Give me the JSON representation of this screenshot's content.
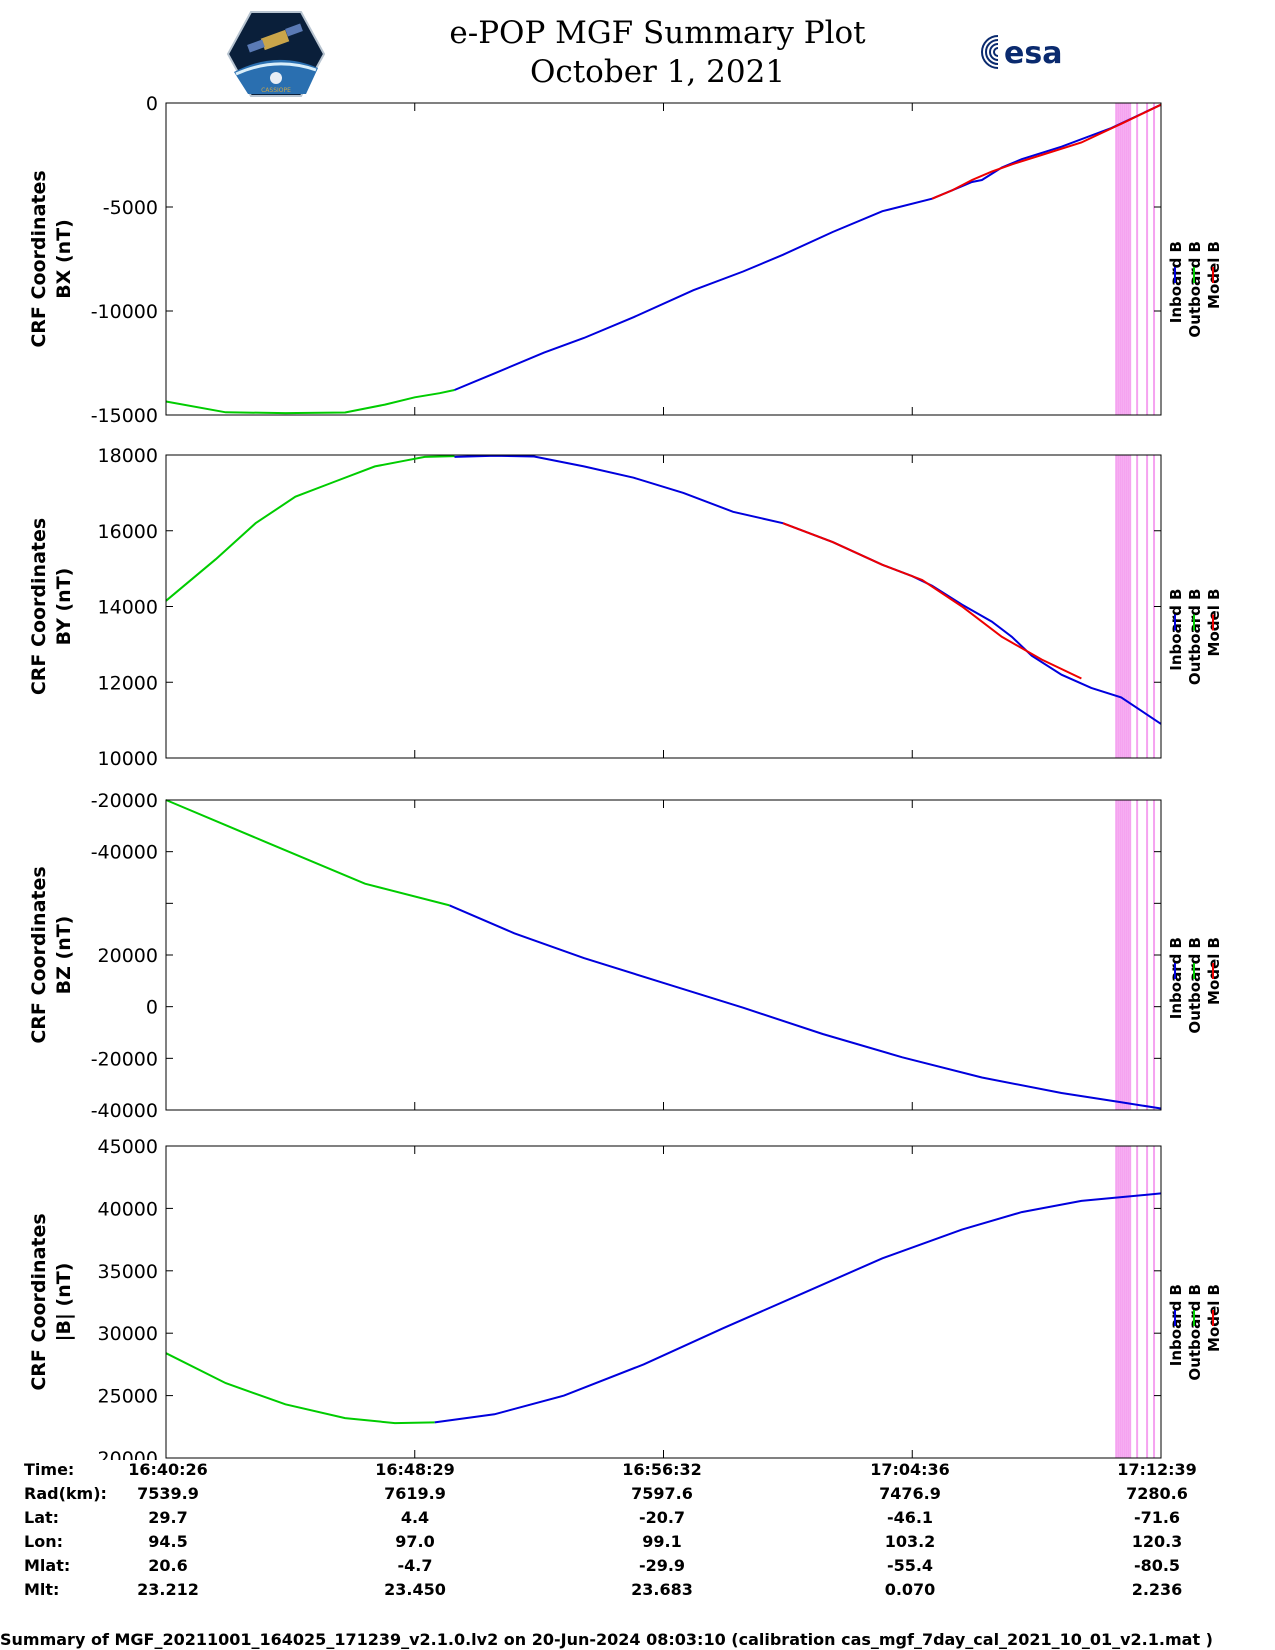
{
  "title": {
    "line1": "e-POP MGF Summary Plot",
    "line2": "October 1, 2021"
  },
  "logos": {
    "left": "cassiope-logo",
    "left_text": "CASSIOPE",
    "right": "esa-logo",
    "right_text": "esa"
  },
  "colors": {
    "inboard": "#0000dd",
    "outboard": "#00cc00",
    "model": "#ee0000",
    "event_bands": "#f5a3f0"
  },
  "legend": [
    "Inboard B",
    "Outboard B",
    "Model B"
  ],
  "chart_data": [
    {
      "type": "line",
      "ylabel_line1": "CRF Coordinates",
      "ylabel_line2": "BX (nT)",
      "yticks": [
        "0",
        "-5000",
        "-10000",
        "-15000"
      ],
      "ylim": [
        -15000,
        0
      ],
      "xlim": [
        0,
        1000
      ],
      "series": [
        {
          "name": "Outboard B",
          "x": [
            0,
            60,
            120,
            180,
            220,
            250,
            275,
            290
          ],
          "y": [
            -14350,
            -14870,
            -14910,
            -14880,
            -14500,
            -14150,
            -13950,
            -13800
          ]
        },
        {
          "name": "Inboard B",
          "x": [
            290,
            330,
            380,
            420,
            470,
            530,
            580,
            620,
            670,
            720,
            770,
            800,
            810,
            820,
            840,
            860,
            900,
            950,
            1000
          ],
          "y": [
            -13800,
            -13000,
            -12000,
            -11300,
            -10300,
            -9000,
            -8100,
            -7300,
            -6200,
            -5200,
            -4600,
            -4000,
            -3800,
            -3700,
            -3100,
            -2700,
            -2100,
            -1200,
            -80
          ]
        },
        {
          "name": "Model B",
          "x": [
            770,
            790,
            810,
            830,
            850,
            880,
            920,
            960,
            1000
          ],
          "y": [
            -4600,
            -4200,
            -3700,
            -3300,
            -2950,
            -2500,
            -1900,
            -1000,
            -80
          ]
        }
      ]
    },
    {
      "type": "line",
      "ylabel_line1": "CRF Coordinates",
      "ylabel_line2": "BY (nT)",
      "yticks": [
        "18000",
        "16000",
        "14000",
        "12000",
        "10000"
      ],
      "ylim": [
        10000,
        18000
      ],
      "xlim": [
        0,
        1000
      ],
      "series": [
        {
          "name": "Outboard B",
          "x": [
            0,
            50,
            90,
            130,
            170,
            210,
            240,
            260,
            290
          ],
          "y": [
            14150,
            15250,
            16200,
            16900,
            17300,
            17700,
            17850,
            17950,
            17970
          ]
        },
        {
          "name": "Inboard B",
          "x": [
            290,
            330,
            370,
            420,
            470,
            520,
            570,
            620,
            670,
            720,
            750,
            770,
            800,
            830,
            850,
            870,
            900,
            930,
            960,
            1000
          ],
          "y": [
            17950,
            17980,
            17960,
            17700,
            17400,
            17000,
            16500,
            16200,
            15700,
            15100,
            14800,
            14550,
            14050,
            13600,
            13200,
            12700,
            12200,
            11850,
            11600,
            10900
          ]
        },
        {
          "name": "Model B",
          "x": [
            620,
            670,
            720,
            760,
            800,
            840,
            880,
            920
          ],
          "y": [
            16200,
            15700,
            15100,
            14700,
            14000,
            13200,
            12600,
            12100
          ]
        }
      ]
    },
    {
      "type": "line",
      "ylabel_line1": "CRF Coordinates",
      "ylabel_line2": "BZ (nT)",
      "yticks": [
        "-20000",
        "-40000",
        "",
        "20000",
        "0",
        "-20000",
        "-40000"
      ],
      "ylim": [
        -40000,
        60000
      ],
      "xlim": [
        0,
        1000
      ],
      "series": [
        {
          "name": "Outboard B",
          "x": [
            0,
            100,
            200,
            285
          ],
          "y": [
            60000,
            46500,
            33000,
            26000
          ]
        },
        {
          "name": "Inboard B",
          "x": [
            285,
            350,
            420,
            500,
            580,
            660,
            740,
            820,
            900,
            960,
            1000
          ],
          "y": [
            26000,
            17000,
            9000,
            1000,
            -7000,
            -15500,
            -23000,
            -29500,
            -34500,
            -37500,
            -39500
          ]
        },
        {
          "name": "Model B",
          "x": [],
          "y": []
        }
      ]
    },
    {
      "type": "line",
      "ylabel_line1": "CRF Coordinates",
      "ylabel_line2": "|B| (nT)",
      "yticks": [
        "45000",
        "40000",
        "35000",
        "30000",
        "25000",
        "20000"
      ],
      "ylim": [
        20000,
        45000
      ],
      "xlim": [
        0,
        1000
      ],
      "series": [
        {
          "name": "Outboard B",
          "x": [
            0,
            60,
            120,
            180,
            230,
            270
          ],
          "y": [
            28400,
            26000,
            24300,
            23200,
            22800,
            22850
          ]
        },
        {
          "name": "Inboard B",
          "x": [
            270,
            330,
            400,
            480,
            560,
            640,
            720,
            800,
            860,
            920,
            1000
          ],
          "y": [
            22850,
            23500,
            25000,
            27500,
            30400,
            33200,
            36000,
            38300,
            39700,
            40600,
            41200
          ]
        },
        {
          "name": "Model B",
          "x": [],
          "y": []
        }
      ]
    }
  ],
  "event_lines_x": [
    955,
    957,
    959,
    961,
    963,
    965,
    967,
    969,
    976,
    986,
    993
  ],
  "info": {
    "labels": [
      "Time:",
      "Rad(km):",
      "Lat:",
      "Lon:",
      "Mlat:",
      "Mlt:"
    ],
    "columns": [
      [
        "16:40:26",
        "7539.9",
        "29.7",
        "94.5",
        "20.6",
        "23.212"
      ],
      [
        "16:48:29",
        "7619.9",
        "4.4",
        "97.0",
        "-4.7",
        "23.450"
      ],
      [
        "16:56:32",
        "7597.6",
        "-20.7",
        "99.1",
        "-29.9",
        "23.683"
      ],
      [
        "17:04:36",
        "7476.9",
        "-46.1",
        "103.2",
        "-55.4",
        "0.070"
      ],
      [
        "17:12:39",
        "7280.6",
        "-71.6",
        "120.3",
        "-80.5",
        "2.236"
      ]
    ]
  },
  "footer": "Summary of MGF_20211001_164025_171239_v2.1.0.lv2 on 20-Jun-2024 08:03:10 (calibration cas_mgf_7day_cal_2021_10_01_v2.1.mat )"
}
